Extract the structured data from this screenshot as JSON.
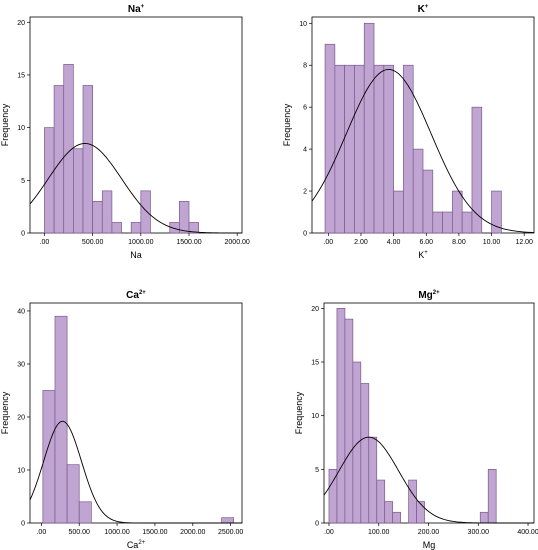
{
  "chart_data": [
    {
      "type": "bar",
      "title": "Na",
      "title_sup": "+",
      "xlabel": "Na",
      "xlabel_sup": "",
      "ylabel": "Frequency",
      "xlim": [
        -150,
        2050
      ],
      "ylim": [
        0,
        20.5
      ],
      "xticks": [
        0,
        500,
        1000,
        1500,
        2000
      ],
      "xtick_labels": [
        ".00",
        "500.00",
        "1000.00",
        "1500.00",
        "2000.00"
      ],
      "yticks": [
        0,
        5,
        10,
        15,
        20
      ],
      "ytick_labels": [
        "0",
        "5",
        "10",
        "15",
        "20"
      ],
      "bin_width": 100,
      "bins": [
        {
          "x": 0,
          "y": 10
        },
        {
          "x": 100,
          "y": 14
        },
        {
          "x": 200,
          "y": 16
        },
        {
          "x": 300,
          "y": 8
        },
        {
          "x": 400,
          "y": 14
        },
        {
          "x": 500,
          "y": 3
        },
        {
          "x": 600,
          "y": 4
        },
        {
          "x": 700,
          "y": 1
        },
        {
          "x": 900,
          "y": 1
        },
        {
          "x": 1000,
          "y": 4
        },
        {
          "x": 1300,
          "y": 1
        },
        {
          "x": 1400,
          "y": 3
        },
        {
          "x": 1500,
          "y": 1
        }
      ],
      "normal_curve": {
        "mean": 420,
        "sd": 380,
        "peak": 8.5
      },
      "grid": false,
      "bar_color": "#c0a4d2",
      "edge_color": "#7a5a8c"
    },
    {
      "type": "bar",
      "title": "K",
      "title_sup": "+",
      "xlabel": "K",
      "xlabel_sup": "+",
      "ylabel": "Frequency",
      "xlim": [
        -1,
        12.6
      ],
      "ylim": [
        0,
        10.3
      ],
      "xticks": [
        0,
        2,
        4,
        6,
        8,
        10,
        12
      ],
      "xtick_labels": [
        ".00",
        "2.00",
        "4.00",
        "6.00",
        "8.00",
        "10.00",
        "12.00"
      ],
      "yticks": [
        0,
        2,
        4,
        6,
        8,
        10
      ],
      "ytick_labels": [
        "0",
        "2",
        "4",
        "6",
        "8",
        "10"
      ],
      "bin_width": 0.6,
      "bins": [
        {
          "x": -0.2,
          "y": 9
        },
        {
          "x": 0.4,
          "y": 8
        },
        {
          "x": 1.0,
          "y": 8
        },
        {
          "x": 1.6,
          "y": 8
        },
        {
          "x": 2.2,
          "y": 10
        },
        {
          "x": 2.8,
          "y": 8
        },
        {
          "x": 3.4,
          "y": 8
        },
        {
          "x": 4.0,
          "y": 2
        },
        {
          "x": 4.6,
          "y": 8
        },
        {
          "x": 5.2,
          "y": 4
        },
        {
          "x": 5.8,
          "y": 3
        },
        {
          "x": 6.4,
          "y": 1
        },
        {
          "x": 7.0,
          "y": 1
        },
        {
          "x": 7.6,
          "y": 2
        },
        {
          "x": 8.2,
          "y": 1
        },
        {
          "x": 8.8,
          "y": 6
        },
        {
          "x": 10.0,
          "y": 2
        }
      ],
      "normal_curve": {
        "mean": 3.7,
        "sd": 2.6,
        "peak": 7.8
      },
      "grid": false,
      "bar_color": "#c0a4d2",
      "edge_color": "#7a5a8c"
    },
    {
      "type": "bar",
      "title": "Ca",
      "title_sup": "2+",
      "xlabel": "Ca",
      "xlabel_sup": "2+",
      "ylabel": "Frequency",
      "xlim": [
        -150,
        2650
      ],
      "ylim": [
        0,
        41.5
      ],
      "xticks": [
        0,
        500,
        1000,
        1500,
        2000,
        2500
      ],
      "xtick_labels": [
        ".00",
        "500.00",
        "1000.00",
        "1500.00",
        "2000.00",
        "2500.00"
      ],
      "yticks": [
        0,
        10,
        20,
        30,
        40
      ],
      "ytick_labels": [
        "0",
        "10",
        "20",
        "30",
        "40"
      ],
      "bin_width": 160,
      "bins": [
        {
          "x": 20,
          "y": 25
        },
        {
          "x": 180,
          "y": 39
        },
        {
          "x": 340,
          "y": 11
        },
        {
          "x": 500,
          "y": 4
        },
        {
          "x": 2380,
          "y": 1
        }
      ],
      "normal_curve": {
        "mean": 280,
        "sd": 250,
        "peak": 19.2
      },
      "grid": false,
      "bar_color": "#c0a4d2",
      "edge_color": "#7a5a8c"
    },
    {
      "type": "bar",
      "title": "Mg",
      "title_sup": "2+",
      "xlabel": "Mg",
      "xlabel_sup": "",
      "ylabel": "Frequency",
      "xlim": [
        -10,
        412
      ],
      "ylim": [
        0,
        20.5
      ],
      "xticks": [
        0,
        100,
        200,
        300,
        400
      ],
      "xtick_labels": [
        ".00",
        "100.00",
        "200.00",
        "300.00",
        "400.00"
      ],
      "yticks": [
        0,
        5,
        10,
        15,
        20
      ],
      "ytick_labels": [
        "0",
        "5",
        "10",
        "15",
        "20"
      ],
      "bin_width": 16,
      "bins": [
        {
          "x": 0,
          "y": 5
        },
        {
          "x": 16,
          "y": 20
        },
        {
          "x": 32,
          "y": 19
        },
        {
          "x": 48,
          "y": 15
        },
        {
          "x": 64,
          "y": 13
        },
        {
          "x": 80,
          "y": 8
        },
        {
          "x": 96,
          "y": 4
        },
        {
          "x": 112,
          "y": 2
        },
        {
          "x": 128,
          "y": 1
        },
        {
          "x": 160,
          "y": 4
        },
        {
          "x": 176,
          "y": 2
        },
        {
          "x": 304,
          "y": 1
        },
        {
          "x": 320,
          "y": 5
        }
      ],
      "normal_curve": {
        "mean": 80,
        "sd": 60,
        "peak": 8.0
      },
      "grid": false,
      "bar_color": "#c0a4d2",
      "edge_color": "#7a5a8c"
    }
  ]
}
